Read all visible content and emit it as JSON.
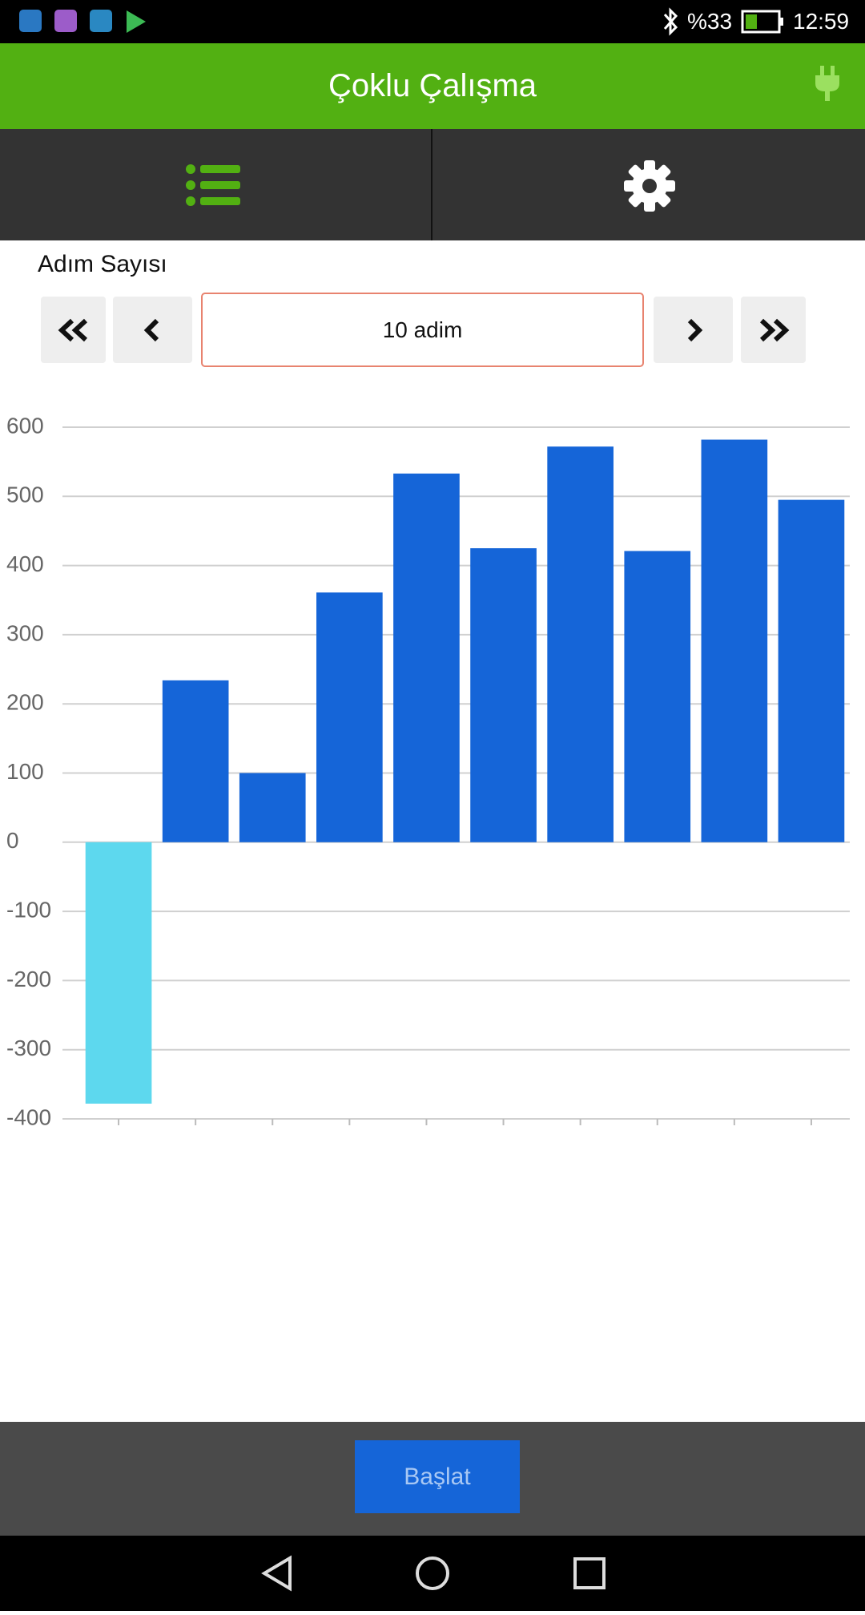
{
  "status_bar": {
    "battery": "%33",
    "time": "12:59"
  },
  "header": {
    "title": "Çoklu Çalışma"
  },
  "step_label": "Adım Sayısı",
  "step_input": "10 adim",
  "chart_data": {
    "type": "bar",
    "categories": [
      null,
      null,
      null,
      null,
      null,
      null,
      null,
      null,
      null,
      null
    ],
    "values": [
      -378,
      234,
      100,
      361,
      533,
      425,
      572,
      421,
      582,
      495
    ],
    "color": "#1565d8",
    "negative_color": "#5dd8ee",
    "ylim": [
      -400,
      600
    ],
    "yticks": [
      -400,
      -300,
      -200,
      -100,
      0,
      100,
      200,
      300,
      400,
      500,
      600
    ],
    "grid": true
  },
  "start_button": "Başlat"
}
